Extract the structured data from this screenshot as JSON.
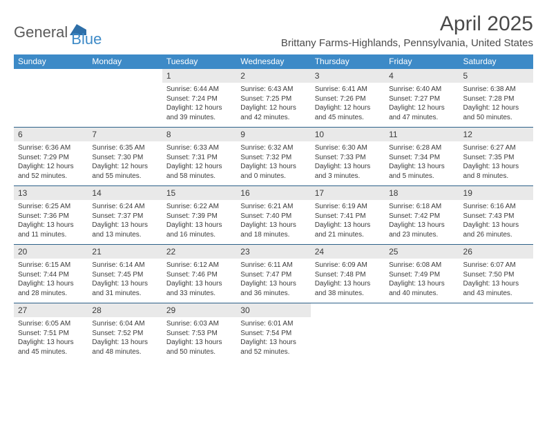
{
  "brand": {
    "text_general": "General",
    "text_blue": "Blue",
    "logo_color": "#2e6fa8"
  },
  "header": {
    "month_title": "April 2025",
    "location": "Brittany Farms-Highlands, Pennsylvania, United States"
  },
  "colors": {
    "header_bar": "#3d8ac7",
    "row_divider": "#2b5f88",
    "daynum_bg": "#e9e9e9",
    "text": "#3a3a3a"
  },
  "days_of_week": [
    "Sunday",
    "Monday",
    "Tuesday",
    "Wednesday",
    "Thursday",
    "Friday",
    "Saturday"
  ],
  "weeks": [
    [
      null,
      null,
      {
        "n": "1",
        "sr": "6:44 AM",
        "ss": "7:24 PM",
        "dh": "12",
        "dm": "39"
      },
      {
        "n": "2",
        "sr": "6:43 AM",
        "ss": "7:25 PM",
        "dh": "12",
        "dm": "42"
      },
      {
        "n": "3",
        "sr": "6:41 AM",
        "ss": "7:26 PM",
        "dh": "12",
        "dm": "45"
      },
      {
        "n": "4",
        "sr": "6:40 AM",
        "ss": "7:27 PM",
        "dh": "12",
        "dm": "47"
      },
      {
        "n": "5",
        "sr": "6:38 AM",
        "ss": "7:28 PM",
        "dh": "12",
        "dm": "50"
      }
    ],
    [
      {
        "n": "6",
        "sr": "6:36 AM",
        "ss": "7:29 PM",
        "dh": "12",
        "dm": "52"
      },
      {
        "n": "7",
        "sr": "6:35 AM",
        "ss": "7:30 PM",
        "dh": "12",
        "dm": "55"
      },
      {
        "n": "8",
        "sr": "6:33 AM",
        "ss": "7:31 PM",
        "dh": "12",
        "dm": "58"
      },
      {
        "n": "9",
        "sr": "6:32 AM",
        "ss": "7:32 PM",
        "dh": "13",
        "dm": "0"
      },
      {
        "n": "10",
        "sr": "6:30 AM",
        "ss": "7:33 PM",
        "dh": "13",
        "dm": "3"
      },
      {
        "n": "11",
        "sr": "6:28 AM",
        "ss": "7:34 PM",
        "dh": "13",
        "dm": "5"
      },
      {
        "n": "12",
        "sr": "6:27 AM",
        "ss": "7:35 PM",
        "dh": "13",
        "dm": "8"
      }
    ],
    [
      {
        "n": "13",
        "sr": "6:25 AM",
        "ss": "7:36 PM",
        "dh": "13",
        "dm": "11"
      },
      {
        "n": "14",
        "sr": "6:24 AM",
        "ss": "7:37 PM",
        "dh": "13",
        "dm": "13"
      },
      {
        "n": "15",
        "sr": "6:22 AM",
        "ss": "7:39 PM",
        "dh": "13",
        "dm": "16"
      },
      {
        "n": "16",
        "sr": "6:21 AM",
        "ss": "7:40 PM",
        "dh": "13",
        "dm": "18"
      },
      {
        "n": "17",
        "sr": "6:19 AM",
        "ss": "7:41 PM",
        "dh": "13",
        "dm": "21"
      },
      {
        "n": "18",
        "sr": "6:18 AM",
        "ss": "7:42 PM",
        "dh": "13",
        "dm": "23"
      },
      {
        "n": "19",
        "sr": "6:16 AM",
        "ss": "7:43 PM",
        "dh": "13",
        "dm": "26"
      }
    ],
    [
      {
        "n": "20",
        "sr": "6:15 AM",
        "ss": "7:44 PM",
        "dh": "13",
        "dm": "28"
      },
      {
        "n": "21",
        "sr": "6:14 AM",
        "ss": "7:45 PM",
        "dh": "13",
        "dm": "31"
      },
      {
        "n": "22",
        "sr": "6:12 AM",
        "ss": "7:46 PM",
        "dh": "13",
        "dm": "33"
      },
      {
        "n": "23",
        "sr": "6:11 AM",
        "ss": "7:47 PM",
        "dh": "13",
        "dm": "36"
      },
      {
        "n": "24",
        "sr": "6:09 AM",
        "ss": "7:48 PM",
        "dh": "13",
        "dm": "38"
      },
      {
        "n": "25",
        "sr": "6:08 AM",
        "ss": "7:49 PM",
        "dh": "13",
        "dm": "40"
      },
      {
        "n": "26",
        "sr": "6:07 AM",
        "ss": "7:50 PM",
        "dh": "13",
        "dm": "43"
      }
    ],
    [
      {
        "n": "27",
        "sr": "6:05 AM",
        "ss": "7:51 PM",
        "dh": "13",
        "dm": "45"
      },
      {
        "n": "28",
        "sr": "6:04 AM",
        "ss": "7:52 PM",
        "dh": "13",
        "dm": "48"
      },
      {
        "n": "29",
        "sr": "6:03 AM",
        "ss": "7:53 PM",
        "dh": "13",
        "dm": "50"
      },
      {
        "n": "30",
        "sr": "6:01 AM",
        "ss": "7:54 PM",
        "dh": "13",
        "dm": "52"
      },
      null,
      null,
      null
    ]
  ],
  "labels": {
    "sunrise_prefix": "Sunrise: ",
    "sunset_prefix": "Sunset: ",
    "daylight_prefix": "Daylight: ",
    "hours_word": " hours",
    "and_word": "and ",
    "minutes_word": " minutes."
  }
}
